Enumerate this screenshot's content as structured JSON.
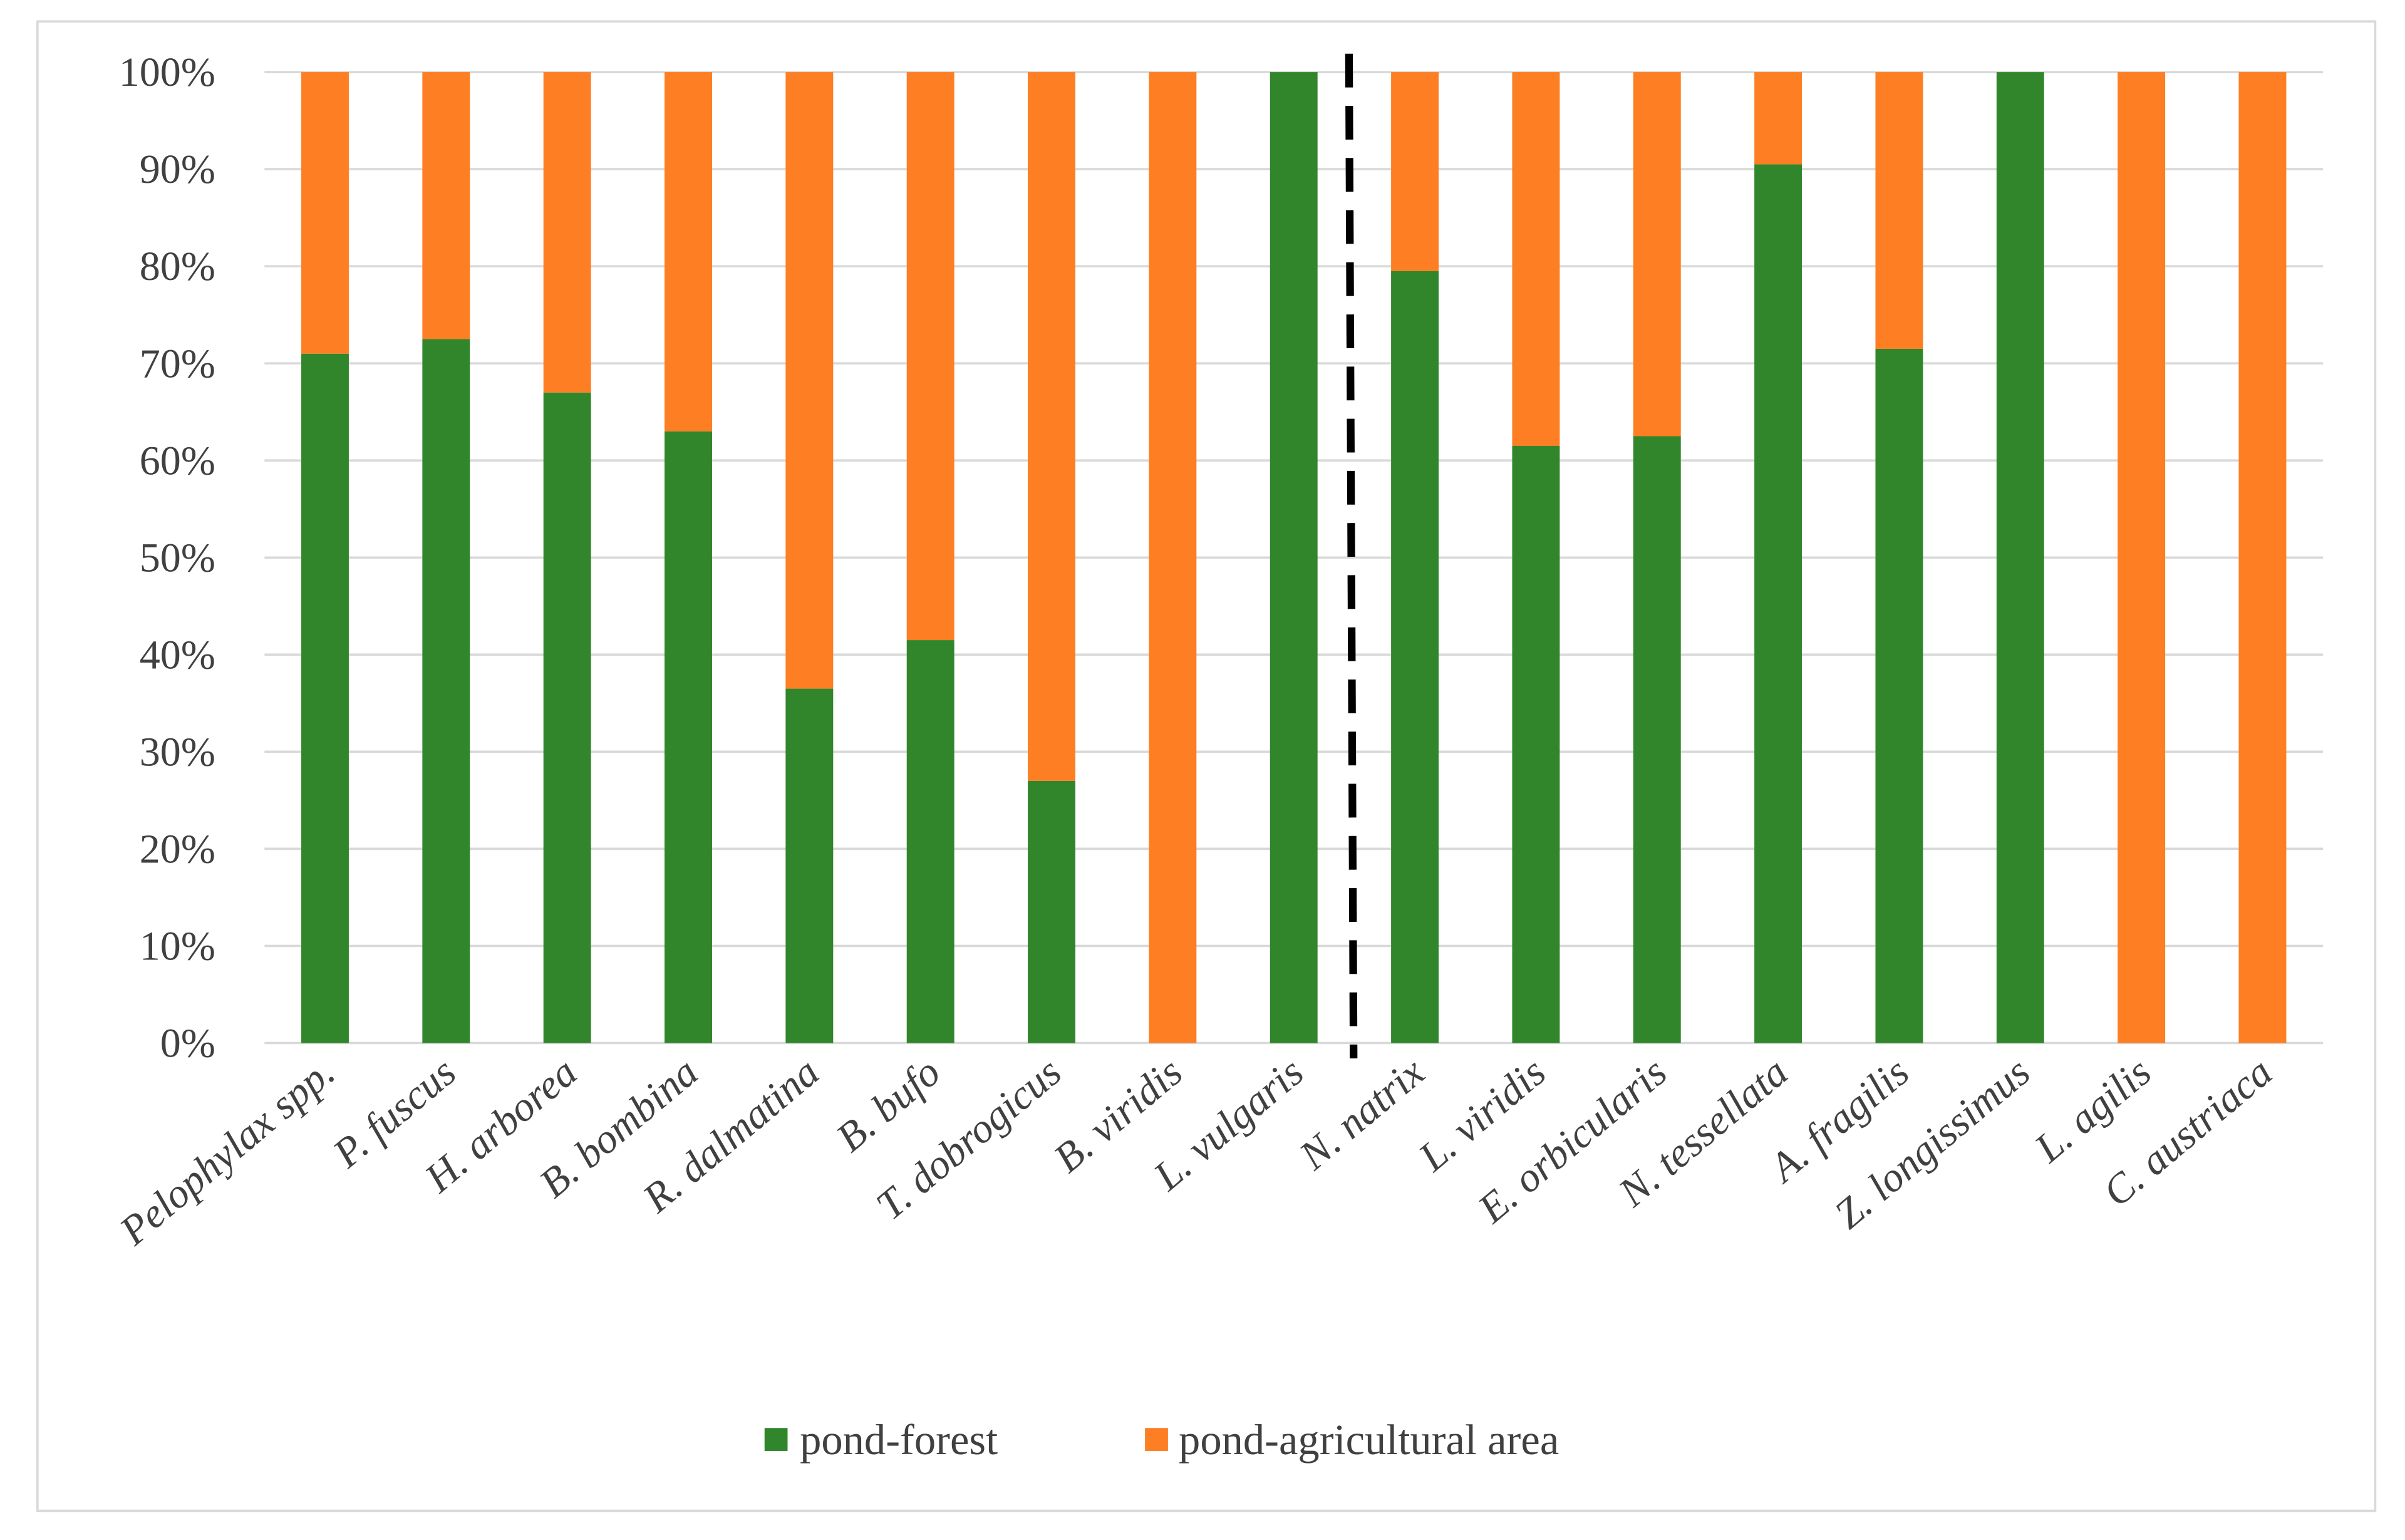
{
  "chart_data": {
    "type": "bar",
    "stacked": true,
    "percent": true,
    "title": "",
    "xlabel": "",
    "ylabel": "",
    "ylim": [
      0,
      100
    ],
    "yticks": [
      "0%",
      "10%",
      "20%",
      "30%",
      "40%",
      "50%",
      "60%",
      "70%",
      "80%",
      "90%",
      "100%"
    ],
    "grid": true,
    "legend_position": "bottom",
    "categories": [
      "Pelophylax spp.",
      "P. fuscus",
      "H. arborea",
      "B. bombina",
      "R. dalmatina",
      "B. bufo",
      "T. dobrogicus",
      "B. viridis",
      "L. vulgaris",
      "N. natrix",
      "L. viridis",
      "E. orbicularis",
      "N. tessellata",
      "A. fragilis",
      "Z. longissimus",
      "L. agilis",
      "C. austriaca"
    ],
    "series": [
      {
        "name": "pond-forest",
        "color": "#31862b",
        "values": [
          71,
          72.5,
          67,
          63,
          36.5,
          41.5,
          27,
          0,
          100,
          79.5,
          61.5,
          62.5,
          90.5,
          71.5,
          100,
          0,
          0
        ]
      },
      {
        "name": "pond-agricultural area",
        "color": "#fd7e23",
        "values": [
          29,
          27.5,
          33,
          37,
          63.5,
          58.5,
          73,
          100,
          0,
          20.5,
          38.5,
          37.5,
          9.5,
          28.5,
          0,
          100,
          100
        ]
      }
    ],
    "annotations": {
      "divider_after_category": "L. vulgaris",
      "divider_style": "dashed-black"
    }
  }
}
